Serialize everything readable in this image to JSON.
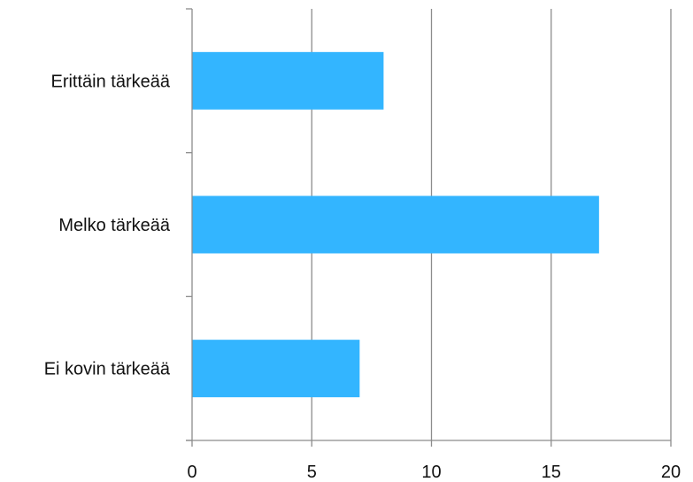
{
  "chart_data": {
    "type": "bar",
    "orientation": "horizontal",
    "categories": [
      "Erittäin tärkeää",
      "Melko tärkeää",
      "Ei kovin tärkeää"
    ],
    "values": [
      8,
      17,
      7
    ],
    "xlim": [
      0,
      20
    ],
    "x_ticks": [
      "0",
      "5",
      "10",
      "15",
      "20"
    ],
    "grid": "vertical",
    "bar_color": "#33B5FF",
    "grid_color": "#8c8c8c",
    "axis_color": "#8c8c8c"
  }
}
